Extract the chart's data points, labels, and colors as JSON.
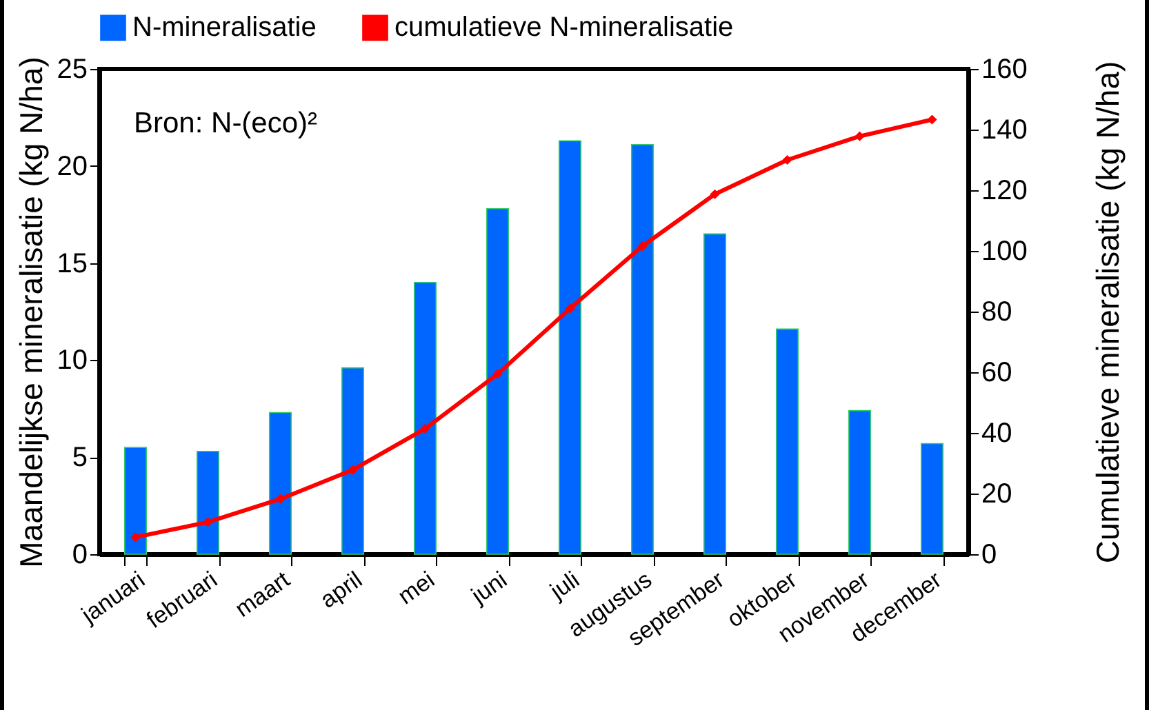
{
  "chart_data": {
    "type": "bar",
    "ylabel": "Maandelijkse mineralisatie (kg N/ha)",
    "y2label": "Cumulatieve mineralisatie (kg N/ha)",
    "annotations": [
      "Bron: N-(eco)²"
    ],
    "categories": [
      "januari",
      "februari",
      "maart",
      "april",
      "mei",
      "juni",
      "juli",
      "augustus",
      "september",
      "oktober",
      "november",
      "december"
    ],
    "series": [
      {
        "name": "N-mineralisatie",
        "color": "#0066ff",
        "values": [
          5.5,
          5.3,
          7.3,
          9.6,
          14.0,
          17.8,
          21.3,
          21.1,
          16.5,
          11.6,
          7.4,
          5.7
        ]
      },
      {
        "name": "cumulatieve N-mineralisatie",
        "type": "line",
        "axis": "y2",
        "color": "#ff0000",
        "values": [
          5.6,
          10.6,
          18.2,
          27.8,
          41.4,
          59.4,
          81,
          101.6,
          118.7,
          130,
          137.8,
          143.3
        ]
      }
    ],
    "ylim": [
      0,
      25
    ],
    "yticks": [
      0,
      5,
      10,
      15,
      20,
      25
    ],
    "y2lim": [
      0,
      160
    ],
    "y2ticks": [
      0,
      20,
      40,
      60,
      80,
      100,
      120,
      140,
      160
    ],
    "grid": false,
    "legend": "top",
    "marker": "diamond",
    "line_style": "solid"
  }
}
